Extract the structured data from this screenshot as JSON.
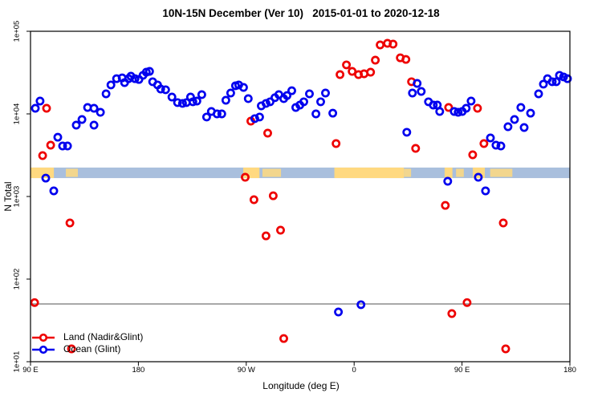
{
  "title": "10N-15N December (Ver 10)   2015-01-01 to 2020-12-18",
  "chart_data": {
    "type": "scatter",
    "title": "10N-15N December (Ver 10)   2015-01-01 to 2020-12-18",
    "xlabel": "Longitude (deg E)",
    "ylabel": "N Total",
    "x_axis": {
      "note": "axis spans 450 deg: 90E eastward through 180, 90W, 0, 90E, to 180",
      "range_deg_extended": [
        90,
        540
      ],
      "ticks": [
        {
          "value": 90,
          "label": "90 E"
        },
        {
          "value": 180,
          "label": "180"
        },
        {
          "value": 270,
          "label": "90 W"
        },
        {
          "value": 360,
          "label": "0"
        },
        {
          "value": 450,
          "label": "90 E"
        },
        {
          "value": 540,
          "label": "180"
        }
      ]
    },
    "y_axis": {
      "scale": "log10",
      "range": [
        10,
        100000
      ],
      "ticks": [
        {
          "value": 10,
          "label": "1e+01"
        },
        {
          "value": 100,
          "label": "1e+02"
        },
        {
          "value": 1000,
          "label": "1e+03"
        },
        {
          "value": 10000,
          "label": "1e+04"
        },
        {
          "value": 100000,
          "label": "1e+05"
        }
      ]
    },
    "reference_line": {
      "value": 50,
      "color": "#8c8c8c"
    },
    "map_band": {
      "description": "land/ocean strip along 10N-15N drawn across the plot",
      "value_range": [
        1670,
        2240
      ],
      "ocean_color": "#a9bfdd",
      "land_color": "#ffd980",
      "land_segments": [
        {
          "from": 90,
          "to": 109.5,
          "style": "solid"
        },
        {
          "from": 119.5,
          "to": 129.5,
          "style": "sparse"
        },
        {
          "from": 267.5,
          "to": 281,
          "style": "solid"
        },
        {
          "from": 283.5,
          "to": 299,
          "style": "sparse"
        },
        {
          "from": 343.5,
          "to": 401.5,
          "style": "solid"
        },
        {
          "from": 401.5,
          "to": 407.5,
          "style": "sparse"
        },
        {
          "from": 435.5,
          "to": 442,
          "style": "solid"
        },
        {
          "from": 445,
          "to": 451.5,
          "style": "sparse"
        },
        {
          "from": 459,
          "to": 469,
          "style": "solid"
        },
        {
          "from": 473.5,
          "to": 492,
          "style": "sparse"
        }
      ]
    },
    "series": [
      {
        "name": "Land (Nadir&Glint)",
        "color": "#ee0000",
        "marker": "open-circle",
        "points": [
          [
            100.1,
            3130
          ],
          [
            103.4,
            11700
          ],
          [
            106.8,
            4180
          ],
          [
            122.9,
            478
          ],
          [
            273.8,
            8180
          ],
          [
            287.9,
            5850
          ],
          [
            344.9,
            4370
          ],
          [
            348.2,
            29900
          ],
          [
            353.6,
            39200
          ],
          [
            358.3,
            32700
          ],
          [
            363.6,
            29900
          ],
          [
            368.3,
            30600
          ],
          [
            373.7,
            32000
          ],
          [
            377.7,
            44700
          ],
          [
            381.7,
            68400
          ],
          [
            387.8,
            71500
          ],
          [
            392.5,
            70000
          ],
          [
            398.5,
            47700
          ],
          [
            403.2,
            45600
          ],
          [
            407.9,
            24500
          ],
          [
            411.3,
            3820
          ],
          [
            438.8,
            11970
          ],
          [
            458.9,
            3200
          ],
          [
            462.9,
            11700
          ],
          [
            468.3,
            4370
          ],
          [
            269.1,
            1710
          ],
          [
            276.4,
            914
          ],
          [
            286.5,
            334
          ],
          [
            292.5,
            1020
          ],
          [
            298.6,
            391
          ],
          [
            436.1,
            781
          ],
          [
            484.4,
            478
          ],
          [
            93.4,
            52
          ],
          [
            124.2,
            14.3
          ],
          [
            301.3,
            19.1
          ],
          [
            441.5,
            38.2
          ],
          [
            454.2,
            52
          ],
          [
            486.4,
            14.3
          ]
        ]
      },
      {
        "name": "Ocean (Glint)",
        "color": "#0000ee",
        "marker": "open-circle",
        "points": [
          [
            94.0,
            11700
          ],
          [
            98.0,
            14300
          ],
          [
            112.8,
            5220
          ],
          [
            116.8,
            4090
          ],
          [
            120.9,
            4090
          ],
          [
            128.2,
            7310
          ],
          [
            132.9,
            8550
          ],
          [
            137.6,
            11970
          ],
          [
            143.0,
            11700
          ],
          [
            143.0,
            7310
          ],
          [
            148.3,
            10450
          ],
          [
            153.0,
            17500
          ],
          [
            157.1,
            22400
          ],
          [
            161.8,
            26700
          ],
          [
            166.5,
            27300
          ],
          [
            168.5,
            23900
          ],
          [
            171.8,
            26700
          ],
          [
            173.8,
            28600
          ],
          [
            177.2,
            26700
          ],
          [
            180.5,
            26100
          ],
          [
            183.9,
            29300
          ],
          [
            186.6,
            32000
          ],
          [
            189.3,
            32700
          ],
          [
            191.9,
            24500
          ],
          [
            196.0,
            22400
          ],
          [
            198.6,
            20000
          ],
          [
            202.7,
            19600
          ],
          [
            208.0,
            16000
          ],
          [
            212.7,
            13700
          ],
          [
            216.8,
            13400
          ],
          [
            220.1,
            13700
          ],
          [
            223.5,
            16000
          ],
          [
            225.5,
            14000
          ],
          [
            228.8,
            14300
          ],
          [
            232.9,
            17100
          ],
          [
            236.9,
            9160
          ],
          [
            240.9,
            10700
          ],
          [
            245.6,
            10000
          ],
          [
            249.6,
            10000
          ],
          [
            253.0,
            14630
          ],
          [
            257.0,
            17900
          ],
          [
            261.0,
            21900
          ],
          [
            263.7,
            22400
          ],
          [
            267.7,
            20900
          ],
          [
            271.7,
            15300
          ],
          [
            277.1,
            8760
          ],
          [
            281.1,
            9160
          ],
          [
            282.5,
            12500
          ],
          [
            286.5,
            13400
          ],
          [
            289.9,
            14000
          ],
          [
            293.9,
            15700
          ],
          [
            297.2,
            17100
          ],
          [
            301.3,
            15300
          ],
          [
            304.0,
            16700
          ],
          [
            308.0,
            19100
          ],
          [
            311.3,
            11970
          ],
          [
            314.7,
            12800
          ],
          [
            318.0,
            14000
          ],
          [
            322.7,
            17500
          ],
          [
            328.1,
            10000
          ],
          [
            332.1,
            14000
          ],
          [
            336.1,
            17900
          ],
          [
            342.2,
            10200
          ],
          [
            403.9,
            5990
          ],
          [
            408.6,
            17900
          ],
          [
            412.6,
            23400
          ],
          [
            416.0,
            18700
          ],
          [
            422.0,
            14000
          ],
          [
            426.0,
            12800
          ],
          [
            429.4,
            12800
          ],
          [
            431.4,
            10700
          ],
          [
            443.5,
            10700
          ],
          [
            446.8,
            10450
          ],
          [
            450.2,
            10700
          ],
          [
            453.5,
            11700
          ],
          [
            457.6,
            14300
          ],
          [
            473.7,
            5110
          ],
          [
            478.3,
            4180
          ],
          [
            482.4,
            4090
          ],
          [
            488.4,
            7000
          ],
          [
            493.8,
            8550
          ],
          [
            499.1,
            11970
          ],
          [
            501.8,
            6840
          ],
          [
            507.2,
            10210
          ],
          [
            513.9,
            17500
          ],
          [
            517.9,
            22900
          ],
          [
            521.3,
            26700
          ],
          [
            525.3,
            24500
          ],
          [
            528.6,
            24500
          ],
          [
            531.3,
            29300
          ],
          [
            534.7,
            28000
          ],
          [
            538.0,
            26700
          ],
          [
            102.7,
            1670
          ],
          [
            109.4,
            1170
          ],
          [
            438.1,
            1530
          ],
          [
            463.6,
            1710
          ],
          [
            469.6,
            1170
          ],
          [
            346.9,
            40
          ],
          [
            365.7,
            49
          ]
        ]
      }
    ],
    "legend_position": "bottom-left-inside"
  }
}
